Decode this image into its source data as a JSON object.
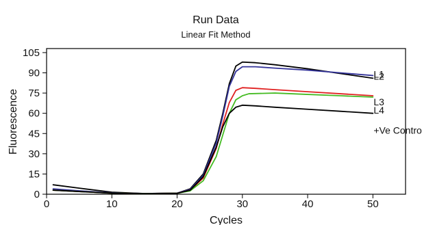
{
  "chart_data": {
    "type": "line",
    "title": "Run Data",
    "subtitle": "Linear Fit Method",
    "xlabel": "Cycles",
    "ylabel": "Fluorescence",
    "xlim": [
      0,
      55
    ],
    "ylim": [
      0,
      108
    ],
    "xticks": [
      0,
      10,
      20,
      30,
      40,
      50
    ],
    "yticks": [
      0,
      15,
      30,
      45,
      60,
      75,
      90,
      105
    ],
    "grid": false,
    "series": [
      {
        "name": "L1",
        "color": "#000000",
        "points": [
          [
            1,
            7
          ],
          [
            5,
            4.5
          ],
          [
            10,
            1.5
          ],
          [
            15,
            0.5
          ],
          [
            20,
            0.8
          ],
          [
            22,
            4
          ],
          [
            24,
            15
          ],
          [
            26,
            40
          ],
          [
            27,
            60
          ],
          [
            28,
            82
          ],
          [
            29,
            95
          ],
          [
            30,
            98
          ],
          [
            32,
            97.5
          ],
          [
            35,
            96
          ],
          [
            40,
            93
          ],
          [
            45,
            89.5
          ],
          [
            50,
            86
          ]
        ]
      },
      {
        "name": "L2",
        "color": "#333399",
        "points": [
          [
            1,
            4
          ],
          [
            5,
            2.5
          ],
          [
            10,
            1
          ],
          [
            15,
            0.5
          ],
          [
            20,
            0.8
          ],
          [
            22,
            3.5
          ],
          [
            24,
            14
          ],
          [
            26,
            38
          ],
          [
            27,
            58
          ],
          [
            28,
            80
          ],
          [
            29,
            91
          ],
          [
            30,
            94.5
          ],
          [
            32,
            94.5
          ],
          [
            35,
            93.5
          ],
          [
            40,
            92
          ],
          [
            45,
            90
          ],
          [
            50,
            88
          ]
        ]
      },
      {
        "name": "L3",
        "color": "#e02020",
        "points": [
          [
            1,
            3
          ],
          [
            5,
            2
          ],
          [
            10,
            0.8
          ],
          [
            15,
            0.5
          ],
          [
            20,
            0.7
          ],
          [
            22,
            3
          ],
          [
            24,
            12
          ],
          [
            26,
            34
          ],
          [
            27,
            52
          ],
          [
            28,
            68
          ],
          [
            29,
            77
          ],
          [
            30,
            79
          ],
          [
            32,
            78.5
          ],
          [
            35,
            77.5
          ],
          [
            40,
            76
          ],
          [
            45,
            74.5
          ],
          [
            50,
            73
          ]
        ]
      },
      {
        "name": "L4",
        "color": "#44bb22",
        "points": [
          [
            1,
            3
          ],
          [
            5,
            2
          ],
          [
            10,
            0.8
          ],
          [
            15,
            0.5
          ],
          [
            20,
            0.7
          ],
          [
            22,
            2.5
          ],
          [
            24,
            10
          ],
          [
            26,
            28
          ],
          [
            27,
            44
          ],
          [
            28,
            60
          ],
          [
            29,
            70
          ],
          [
            30,
            73
          ],
          [
            31,
            74.5
          ],
          [
            35,
            75
          ],
          [
            40,
            74
          ],
          [
            45,
            73
          ],
          [
            50,
            72
          ]
        ]
      },
      {
        "name": "+Ve Contro",
        "color": "#000000",
        "points": [
          [
            1,
            3
          ],
          [
            5,
            2
          ],
          [
            10,
            0.8
          ],
          [
            15,
            0.5
          ],
          [
            20,
            0.7
          ],
          [
            22,
            3
          ],
          [
            24,
            13
          ],
          [
            26,
            35
          ],
          [
            27,
            50
          ],
          [
            28,
            60
          ],
          [
            29,
            64.5
          ],
          [
            30,
            66
          ],
          [
            32,
            65.5
          ],
          [
            35,
            64.5
          ],
          [
            40,
            63
          ],
          [
            45,
            61.5
          ],
          [
            50,
            60
          ]
        ]
      }
    ]
  }
}
